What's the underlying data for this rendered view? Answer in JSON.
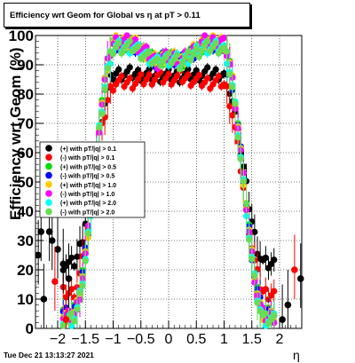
{
  "chart_data": {
    "type": "scatter",
    "title": "Efficiency wrt Geom for Global vs  η at pT > 0.11",
    "xlabel": "η",
    "ylabel": "Efficiency wrt Geom (%)",
    "xlim": [
      -2.4,
      2.4
    ],
    "ylim": [
      0,
      100
    ],
    "x_ticks": [
      -2,
      -1.5,
      -1,
      -0.5,
      0,
      0.5,
      1,
      1.5,
      2
    ],
    "x_tick_labels": [
      "−2",
      "−1.5",
      "−1",
      "−0.5",
      "0",
      "0.5",
      "1",
      "1.5",
      "2"
    ],
    "y_ticks": [
      0,
      10,
      20,
      30,
      40,
      50,
      60,
      70,
      80,
      90,
      100
    ],
    "y_tick_labels": [
      "0",
      "10",
      "20",
      "30",
      "40",
      "50",
      "60",
      "70",
      "80",
      "90",
      "100"
    ],
    "grid": true,
    "legend_position": "center-left",
    "series": [
      {
        "name": "(+) with pT/|q| > 0.1",
        "color": "#000000"
      },
      {
        "name": "(-) with pT/|q| > 0.1",
        "color": "#ff0000"
      },
      {
        "name": "(+) with pT/|q| > 0.5",
        "color": "#00dd00"
      },
      {
        "name": "(-) with pT/|q| > 0.5",
        "color": "#0000ff"
      },
      {
        "name": "(+) with pT/|q| > 1.0",
        "color": "#ffcc00"
      },
      {
        "name": "(-) with pT/|q| > 1.0",
        "color": "#ff00ff"
      },
      {
        "name": "(+) with pT/|q| > 2.0",
        "color": "#00ffff"
      },
      {
        "name": "(-) with pT/|q| > 2.0",
        "color": "#66dd55"
      }
    ],
    "plateau_values": [
      87,
      84,
      97,
      97,
      98,
      98,
      96,
      96
    ],
    "forward_values": [
      22,
      12,
      5,
      5,
      4,
      4,
      3,
      3
    ],
    "outlier_points": [
      {
        "series": 0,
        "x": -2.35,
        "y": 25
      },
      {
        "series": 0,
        "x": -2.3,
        "y": 33
      },
      {
        "series": 0,
        "x": -2.25,
        "y": 10
      },
      {
        "series": 0,
        "x": -2.15,
        "y": 33
      },
      {
        "series": 0,
        "x": -2.1,
        "y": 30
      },
      {
        "series": 0,
        "x": -2.0,
        "y": 27
      },
      {
        "series": 0,
        "x": -1.9,
        "y": 22
      },
      {
        "series": 0,
        "x": -1.8,
        "y": 17
      },
      {
        "series": 1,
        "x": -2.05,
        "y": 16
      },
      {
        "series": 1,
        "x": -1.85,
        "y": 3
      },
      {
        "series": 0,
        "x": 2.05,
        "y": 3
      },
      {
        "series": 0,
        "x": 2.15,
        "y": 8
      },
      {
        "series": 1,
        "x": 2.27,
        "y": 20
      },
      {
        "series": 0,
        "x": 2.38,
        "y": 17
      }
    ]
  },
  "footer_text": "Tue Dec 21 13:13:27 2021"
}
